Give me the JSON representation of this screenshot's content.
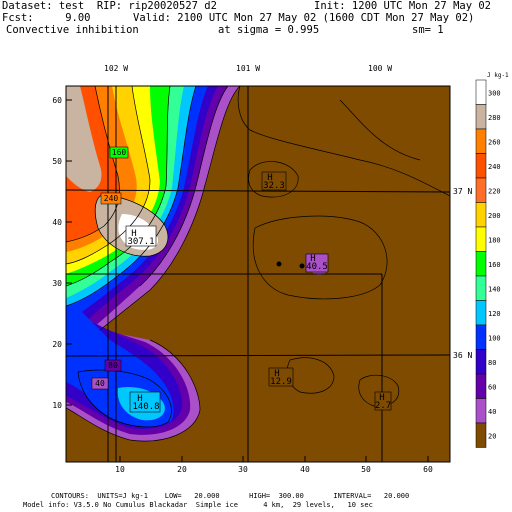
{
  "header": {
    "dataset_line": "Dataset: test  RIP: rip20020527 d2",
    "init_line": "Init: 1200 UTC Mon 27 May 02",
    "fcst_line": "Fcst:     9.00",
    "valid_line": "Valid: 2100 UTC Mon 27 May 02 (1600 CDT Mon 27 May 02)",
    "field_line": "Convective inhibition",
    "sigma_line": "at sigma = 0.995",
    "sm_line": "sm= 1"
  },
  "map": {
    "x_axis_ticks": [
      "10",
      "20",
      "30",
      "40",
      "50",
      "60"
    ],
    "y_axis_ticks": [
      "10",
      "20",
      "30",
      "40",
      "50",
      "60"
    ],
    "lon_labels": [
      "102 W",
      "101 W",
      "100 W"
    ],
    "lat_labels": [
      "37 N",
      "36 N"
    ],
    "highs": [
      {
        "label": "H",
        "value": "307.1"
      },
      {
        "label": "H",
        "value": "140.8"
      },
      {
        "label": "H",
        "value": "40.5"
      },
      {
        "label": "H",
        "value": "32.3"
      },
      {
        "label": "H",
        "value": "12.9"
      },
      {
        "label": "H",
        "value": "2.7"
      }
    ],
    "contour_labels": [
      "160",
      "240",
      "80",
      "40"
    ],
    "colors": {
      "background_brown": "#7f4b00",
      "contour_line": "#000000"
    }
  },
  "legend": {
    "units": "J kg-1",
    "levels": [
      "300",
      "280",
      "260",
      "240",
      "220",
      "200",
      "180",
      "160",
      "140",
      "120",
      "100",
      "80",
      "60",
      "40",
      "20"
    ],
    "colors": [
      "#ffffff",
      "#c8b4a0",
      "#ff7f00",
      "#ff5000",
      "#ff6e28",
      "#ffd200",
      "#ffff00",
      "#00ff00",
      "#32ff96",
      "#00c8ff",
      "#0032ff",
      "#3200c8",
      "#6400aa",
      "#aa50c8",
      "#7f4b00"
    ]
  },
  "footer": {
    "contours_line": "CONTOURS:  UNITS=J kg-1    LOW=   20.000       HIGH=  300.00       INTERVAL=   20.000",
    "model_line": "Model info: V3.5.0 No Cumulus Blackadar  Simple ice      4 km,  29 levels,   10 sec"
  }
}
